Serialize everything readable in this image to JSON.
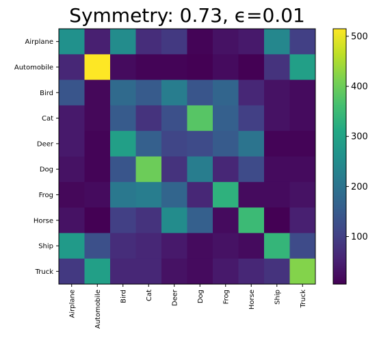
{
  "chart_data": {
    "type": "heatmap",
    "title": "Symmetry: 0.73, ϵ=0.01",
    "xlabel": "",
    "ylabel": "",
    "x_categories": [
      "Airplane",
      "Automobile",
      "Bird",
      "Cat",
      "Deer",
      "Dog",
      "Frog",
      "Horse",
      "Ship",
      "Truck"
    ],
    "y_categories": [
      "Airplane",
      "Automobile",
      "Bird",
      "Cat",
      "Deer",
      "Dog",
      "Frog",
      "Horse",
      "Ship",
      "Truck"
    ],
    "values": [
      [
        260,
        50,
        250,
        70,
        90,
        10,
        30,
        40,
        240,
        100
      ],
      [
        60,
        515,
        20,
        10,
        10,
        5,
        20,
        5,
        80,
        290
      ],
      [
        140,
        15,
        180,
        150,
        220,
        140,
        170,
        60,
        30,
        20
      ],
      [
        40,
        15,
        150,
        80,
        130,
        380,
        160,
        100,
        30,
        20
      ],
      [
        40,
        10,
        290,
        160,
        110,
        120,
        150,
        200,
        10,
        10
      ],
      [
        30,
        10,
        140,
        400,
        80,
        220,
        60,
        120,
        20,
        20
      ],
      [
        15,
        20,
        210,
        220,
        170,
        60,
        330,
        20,
        20,
        30
      ],
      [
        30,
        5,
        100,
        80,
        250,
        160,
        20,
        350,
        5,
        50
      ],
      [
        280,
        130,
        70,
        60,
        40,
        20,
        30,
        20,
        340,
        120
      ],
      [
        90,
        290,
        60,
        60,
        30,
        20,
        40,
        60,
        80,
        420
      ]
    ],
    "colormap": "viridis",
    "colorbar": {
      "ticks": [
        100,
        200,
        300,
        400,
        500
      ],
      "range": [
        5,
        515
      ]
    }
  }
}
